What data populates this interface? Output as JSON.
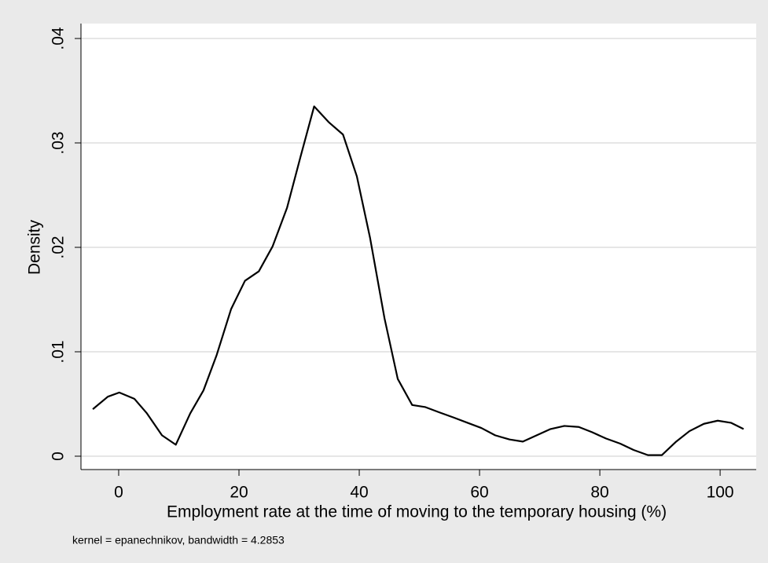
{
  "chart_data": {
    "type": "line",
    "x_label": "Employment rate at the time of moving to the temporary housing (%)",
    "y_label": "Density",
    "note": "kernel = epanechnikov, bandwidth = 4.2853",
    "x": [
      -4.3,
      -1.8,
      0.1,
      2.6,
      4.7,
      7.2,
      9.5,
      11.9,
      14.1,
      16.3,
      18.7,
      21.0,
      23.3,
      25.6,
      28.0,
      30.2,
      32.5,
      34.9,
      37.3,
      39.6,
      41.8,
      44.2,
      46.4,
      48.8,
      51.0,
      53.3,
      55.7,
      58.0,
      60.3,
      62.6,
      65.0,
      67.2,
      69.5,
      71.8,
      74.1,
      76.5,
      78.7,
      81.0,
      83.4,
      85.6,
      88.0,
      90.3,
      92.7,
      94.9,
      97.3,
      99.6,
      101.8,
      103.9
    ],
    "values": [
      0.0045,
      0.0057,
      0.0061,
      0.0055,
      0.0041,
      0.002,
      0.0011,
      0.0041,
      0.0063,
      0.0097,
      0.0141,
      0.0168,
      0.0177,
      0.0201,
      0.0238,
      0.0286,
      0.0335,
      0.032,
      0.0308,
      0.0268,
      0.0209,
      0.0132,
      0.0074,
      0.0049,
      0.0047,
      0.0042,
      0.0037,
      0.0032,
      0.0027,
      0.002,
      0.0016,
      0.0014,
      0.002,
      0.0026,
      0.0029,
      0.0028,
      0.0023,
      0.0017,
      0.0012,
      0.0006,
      0.0001,
      0.0001,
      0.0014,
      0.0024,
      0.0031,
      0.0034,
      0.0032,
      0.0026
    ],
    "color": "#000000",
    "xlim": [
      -6.27,
      106.0
    ],
    "ylim": [
      -0.00128,
      0.04143
    ],
    "xticks": [
      0,
      20,
      40,
      60,
      80,
      100
    ],
    "yticks": [
      0,
      {
        "value": 0.01,
        "label": ".01"
      },
      {
        "value": 0.02,
        "label": ".02"
      },
      {
        "value": 0.03,
        "label": ".03"
      },
      {
        "value": 0.04,
        "label": ".04"
      }
    ],
    "grid": true
  }
}
